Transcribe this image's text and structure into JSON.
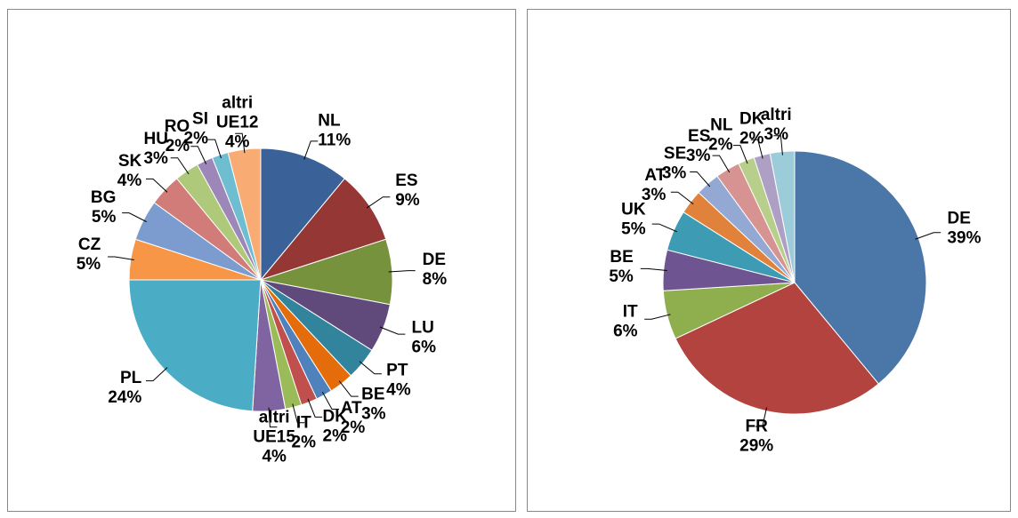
{
  "chart_data": [
    {
      "type": "pie",
      "categories": [
        "NL",
        "ES",
        "DE",
        "LU",
        "PT",
        "BE",
        "AT",
        "DK",
        "IT",
        "altri UE15",
        "PL",
        "CZ",
        "BG",
        "SK",
        "HU",
        "RO",
        "SI",
        "altri UE12"
      ],
      "values": [
        11,
        9,
        8,
        6,
        4,
        3,
        2,
        2,
        2,
        4,
        24,
        5,
        5,
        4,
        3,
        2,
        2,
        4
      ],
      "value_labels": [
        "11%",
        "9%",
        "8%",
        "6%",
        "4%",
        "3%",
        "2%",
        "2%",
        "2%",
        "4%",
        "24%",
        "5%",
        "5%",
        "4%",
        "3%",
        "2%",
        "2%",
        "4%"
      ],
      "colors": [
        "#3b6298",
        "#953735",
        "#76923c",
        "#604a7b",
        "#31849b",
        "#e46c0a",
        "#4f81bd",
        "#c0504d",
        "#9bbb59",
        "#8064a2",
        "#4bacc6",
        "#f79646",
        "#7c9ccf",
        "#d27c79",
        "#afc97a",
        "#9d87b8",
        "#6fbdd1",
        "#f9ab74"
      ]
    },
    {
      "type": "pie",
      "categories": [
        "DE",
        "FR",
        "IT",
        "BE",
        "UK",
        "AT",
        "SE",
        "ES",
        "NL",
        "DK",
        "altri"
      ],
      "values": [
        39,
        29,
        6,
        5,
        5,
        3,
        3,
        3,
        2,
        2,
        3
      ],
      "value_labels": [
        "39%",
        "29%",
        "6%",
        "5%",
        "5%",
        "3%",
        "3%",
        "3%",
        "2%",
        "2%",
        "3%"
      ],
      "colors": [
        "#4a76a8",
        "#b2433f",
        "#8fae4e",
        "#6e5491",
        "#3e9bb4",
        "#e0823c",
        "#93a9d4",
        "#d79391",
        "#b8cf8c",
        "#aea0c4",
        "#9ccbd9"
      ]
    }
  ]
}
